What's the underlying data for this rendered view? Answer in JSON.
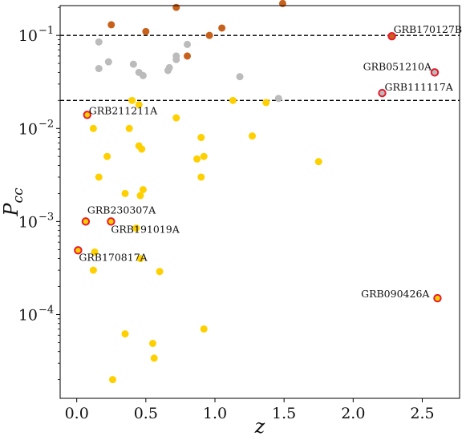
{
  "chart_data": {
    "type": "scatter",
    "title": "",
    "xlabel": "z",
    "ylabel": "P_cc",
    "xlim": [
      -0.12,
      2.77
    ],
    "ylim_log10": [
      -4.9,
      -0.68
    ],
    "xticks": [
      0.0,
      0.5,
      1.0,
      1.5,
      2.0,
      2.5
    ],
    "xtick_labels": [
      "0.0",
      "0.5",
      "1.0",
      "1.5",
      "2.0",
      "2.5"
    ],
    "yticks_exp": [
      -4,
      -3,
      -2,
      -1
    ],
    "ytick_labels": [
      "10",
      "10",
      "10",
      "10"
    ],
    "ytick_exponents": [
      "−4",
      "−3",
      "−2",
      "−1"
    ],
    "hlines": [
      0.1,
      0.02
    ],
    "grid": false,
    "legend": "none",
    "colors": {
      "gold": "#FFD000",
      "gray": "#BBBBBB",
      "brown": "#C8611C",
      "highlight_edge": "#E8182B",
      "axis": "#000000"
    },
    "series": [
      {
        "color": "gold",
        "points": [
          [
            0.12,
            0.01
          ],
          [
            0.22,
            0.005
          ],
          [
            0.16,
            0.003
          ],
          [
            0.35,
            0.002
          ],
          [
            0.38,
            0.01
          ],
          [
            0.4,
            0.02
          ],
          [
            0.45,
            0.018
          ],
          [
            0.45,
            0.0065
          ],
          [
            0.47,
            0.006
          ],
          [
            0.46,
            0.0019
          ],
          [
            0.48,
            0.0022
          ],
          [
            0.72,
            0.013
          ],
          [
            0.87,
            0.0047
          ],
          [
            0.9,
            0.008
          ],
          [
            0.92,
            0.005
          ],
          [
            0.9,
            0.003
          ],
          [
            1.13,
            0.02
          ],
          [
            1.27,
            0.0083
          ],
          [
            1.37,
            0.019
          ],
          [
            1.75,
            0.0044
          ],
          [
            0.43,
            0.00085
          ],
          [
            0.46,
            0.0004
          ],
          [
            0.13,
            0.00047
          ],
          [
            0.12,
            0.0003
          ],
          [
            0.6,
            0.00029
          ],
          [
            0.35,
            6.2e-05
          ],
          [
            0.55,
            4.9e-05
          ],
          [
            0.92,
            7e-05
          ],
          [
            0.56,
            3.4e-05
          ],
          [
            0.26,
            2e-05
          ]
        ]
      },
      {
        "color": "gray",
        "points": [
          [
            0.16,
            0.085
          ],
          [
            0.23,
            0.052
          ],
          [
            0.16,
            0.044
          ],
          [
            0.41,
            0.049
          ],
          [
            0.45,
            0.04
          ],
          [
            0.48,
            0.037
          ],
          [
            0.66,
            0.042
          ],
          [
            0.67,
            0.045
          ],
          [
            0.72,
            0.055
          ],
          [
            0.72,
            0.06
          ],
          [
            0.8,
            0.08
          ],
          [
            1.18,
            0.036
          ],
          [
            1.46,
            0.021
          ]
        ]
      },
      {
        "color": "brown",
        "points": [
          [
            0.25,
            0.13
          ],
          [
            0.5,
            0.11
          ],
          [
            0.72,
            0.2
          ],
          [
            0.8,
            0.06
          ],
          [
            0.96,
            0.1
          ],
          [
            1.05,
            0.12
          ],
          [
            1.49,
            0.22
          ]
        ]
      },
      {
        "color": "highlight",
        "points": [
          {
            "name": "GRB170127B",
            "x": 2.28,
            "y": 0.098,
            "fill": "brown"
          },
          {
            "name": "GRB051210A",
            "x": 2.59,
            "y": 0.04,
            "fill": "gray"
          },
          {
            "name": "GRB111117A",
            "x": 2.21,
            "y": 0.024,
            "fill": "gray"
          },
          {
            "name": "GRB211211A",
            "x": 0.076,
            "y": 0.014,
            "fill": "gold"
          },
          {
            "name": "GRB230307A",
            "x": 0.065,
            "y": 0.001,
            "fill": "gold"
          },
          {
            "name": "GRB191019A",
            "x": 0.248,
            "y": 0.001,
            "fill": "gold"
          },
          {
            "name": "GRB170817A",
            "x": 0.0098,
            "y": 0.00049,
            "fill": "gold"
          },
          {
            "name": "GRB090426A",
            "x": 2.61,
            "y": 0.00015,
            "fill": "gold"
          }
        ]
      }
    ]
  }
}
